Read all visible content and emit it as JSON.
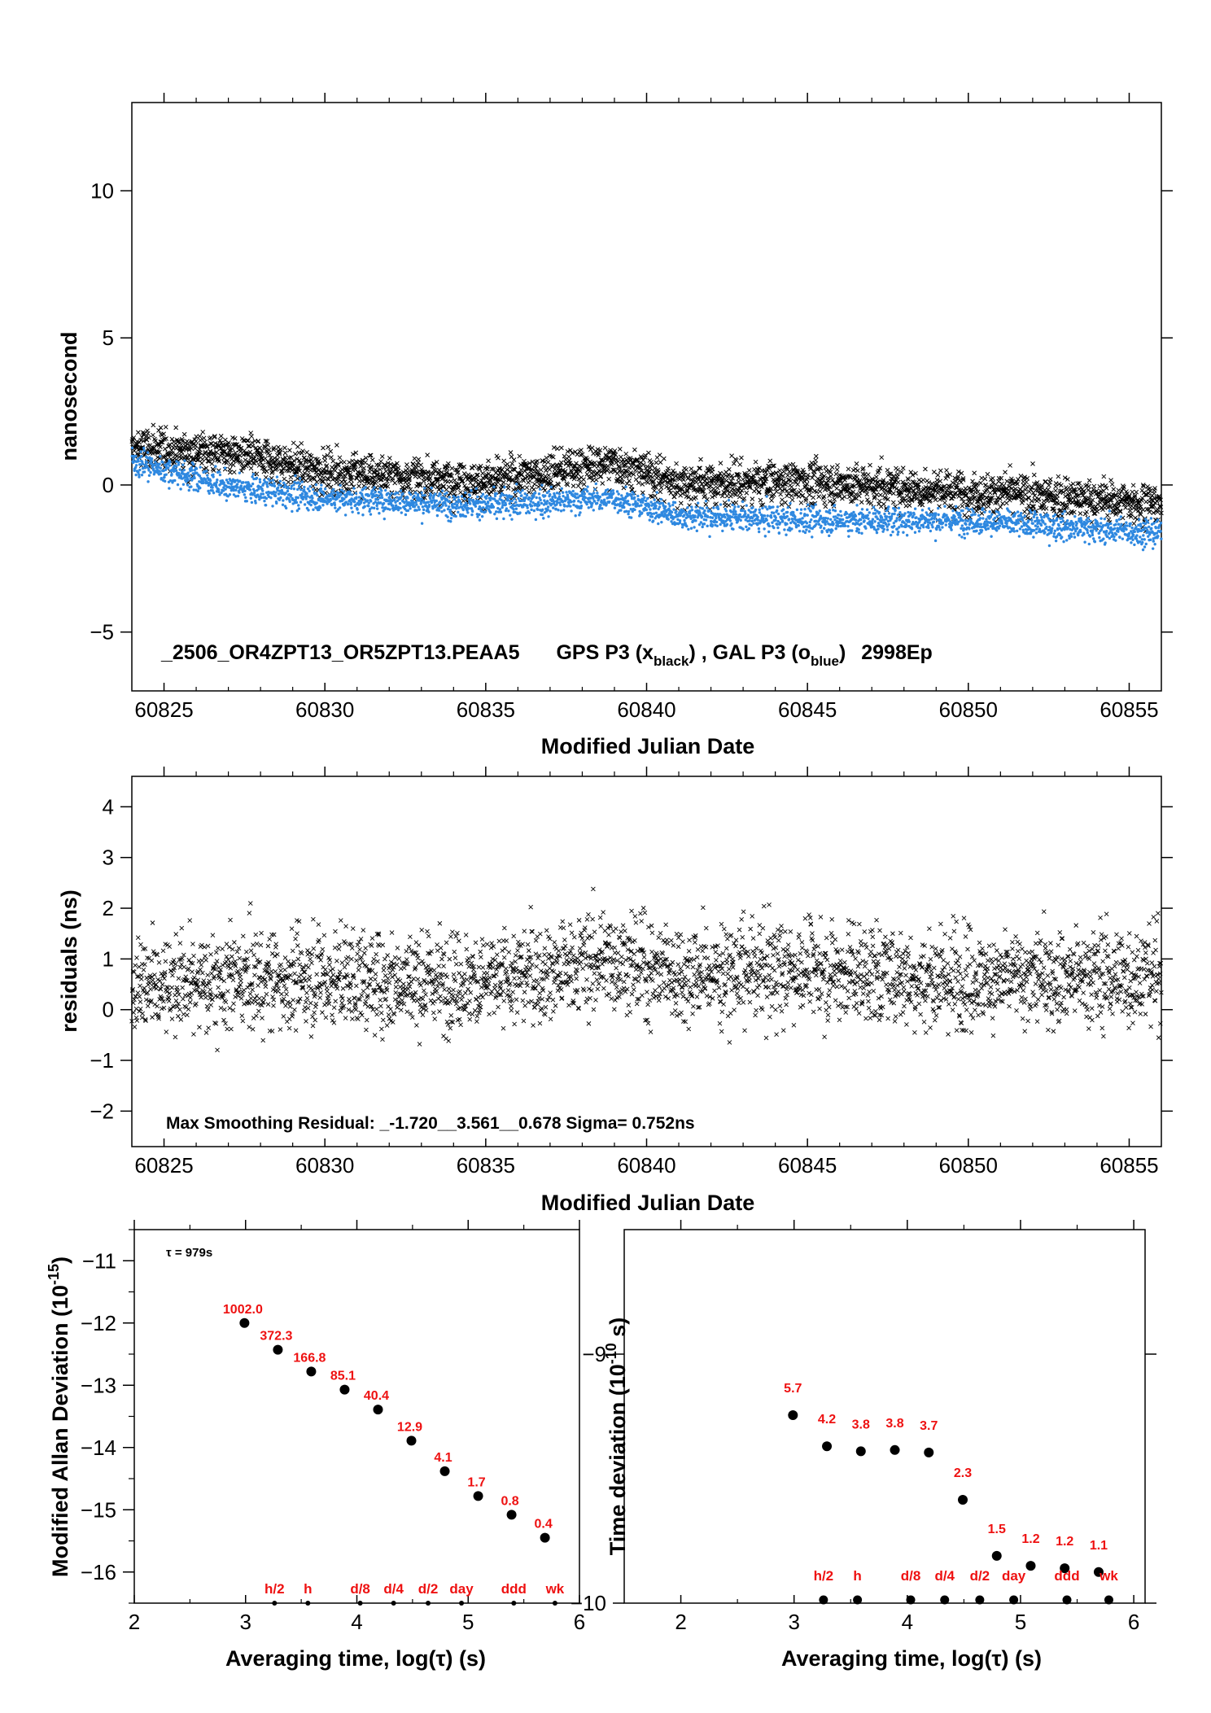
{
  "chart_data": [
    {
      "type": "scatter",
      "panel": "phase",
      "xlabel": "Modified Julian Date",
      "ylabel": "nanosecond",
      "xlim": [
        60824,
        60856
      ],
      "ylim": [
        -7,
        13
      ],
      "xticks": [
        60825,
        60830,
        60835,
        60840,
        60845,
        60850,
        60855
      ],
      "yticks": [
        -5,
        0,
        5,
        10
      ],
      "annotation": {
        "file": "_2506_OR4ZPT13_OR5ZPT13.PEAA5",
        "gps_prefix": "GPS P3 (x",
        "gps_sub": "black",
        "sep": ") ,  GAL P3 (o",
        "gal_sub": "blue",
        "gal_suffix": ")",
        "epochs": "2998Ep"
      },
      "series": [
        {
          "marker": "x",
          "color": "#000000",
          "trend": [
            [
              60824,
              1.25
            ],
            [
              60827,
              1.1
            ],
            [
              60830,
              0.45
            ],
            [
              60835,
              0.1
            ],
            [
              60839,
              0.75
            ],
            [
              60841,
              0.05
            ],
            [
              60845,
              0.1
            ],
            [
              60850,
              -0.25
            ],
            [
              60856,
              -0.65
            ]
          ],
          "spread": 0.55,
          "count": 2998
        },
        {
          "marker": "o",
          "color": "#2e88e0",
          "trend": [
            [
              60824,
              0.8
            ],
            [
              60827,
              -0.05
            ],
            [
              60830,
              -0.45
            ],
            [
              60835,
              -0.7
            ],
            [
              60839,
              -0.45
            ],
            [
              60841,
              -1.05
            ],
            [
              60845,
              -1.2
            ],
            [
              60850,
              -1.2
            ],
            [
              60856,
              -1.65
            ]
          ],
          "spread": 0.35,
          "count": 2998
        }
      ]
    },
    {
      "type": "scatter",
      "panel": "residuals",
      "xlabel": "Modified Julian Date",
      "ylabel": "residuals (ns)",
      "xlim": [
        60824,
        60856
      ],
      "ylim": [
        -2.7,
        4.6
      ],
      "xticks": [
        60825,
        60830,
        60835,
        60840,
        60845,
        60850,
        60855
      ],
      "yticks": [
        -2,
        -1,
        0,
        1,
        2,
        3,
        4
      ],
      "annotation": "Max Smoothing Residual: _-1.720__3.561__0.678  Sigma= 0.752ns",
      "series": [
        {
          "marker": "x",
          "color": "#000000",
          "trend": [
            [
              60824,
              0.5
            ],
            [
              60830,
              0.6
            ],
            [
              60835,
              0.55
            ],
            [
              60839,
              1.0
            ],
            [
              60841,
              0.7
            ],
            [
              60845,
              0.8
            ],
            [
              60850,
              0.6
            ],
            [
              60856,
              0.7
            ]
          ],
          "spread": 0.75,
          "count": 2998
        }
      ]
    },
    {
      "type": "scatter",
      "panel": "mdev",
      "xlabel": "Averaging time, log(τ) (s)",
      "ylabel": "Modified Allan Deviation (10⁻¹⁵)",
      "xlim": [
        2,
        6
      ],
      "ylim": [
        -16.5,
        -10.5
      ],
      "xticks": [
        2,
        3,
        4,
        5,
        6
      ],
      "yticks": [
        -16,
        -15,
        -14,
        -13,
        -12,
        -11
      ],
      "tau_note": "τ = 979s",
      "x": [
        2.99,
        3.29,
        3.59,
        3.89,
        4.19,
        4.49,
        4.79,
        5.09,
        5.39,
        5.69
      ],
      "y": [
        -12.0,
        -12.43,
        -12.78,
        -13.07,
        -13.39,
        -13.89,
        -14.38,
        -14.78,
        -15.08,
        -15.45
      ],
      "labels": [
        "1002.0",
        "372.3",
        "166.8",
        "85.1",
        "40.4",
        "12.9",
        "4.1",
        "1.7",
        "0.8",
        "0.4"
      ],
      "markers": [
        {
          "label": "h/2",
          "x": 3.26
        },
        {
          "label": "h",
          "x": 3.56
        },
        {
          "label": "d/8",
          "x": 4.03
        },
        {
          "label": "d/4",
          "x": 4.33
        },
        {
          "label": "d/2",
          "x": 4.64
        },
        {
          "label": "day",
          "x": 4.94
        },
        {
          "label": "ddd",
          "x": 5.41
        },
        {
          "label": "wk",
          "x": 5.78
        }
      ]
    },
    {
      "type": "scatter",
      "panel": "tdev",
      "xlabel": "Averaging time, log(τ) (s)",
      "ylabel": "Time deviation (10⁻¹⁰ s)",
      "xlim": [
        1.5,
        6.1
      ],
      "ylim": [
        -10,
        -8.5
      ],
      "xticks": [
        2,
        3,
        4,
        5,
        6
      ],
      "yticks": [
        -10,
        -9
      ],
      "x": [
        2.99,
        3.29,
        3.59,
        3.89,
        4.19,
        4.49,
        4.79,
        5.09,
        5.39,
        5.69
      ],
      "y": [
        -9.245,
        -9.37,
        -9.39,
        -9.385,
        -9.395,
        -9.585,
        -9.81,
        -9.85,
        -9.86,
        -9.875
      ],
      "labels": [
        "5.7",
        "4.2",
        "3.8",
        "3.8",
        "3.7",
        "2.3",
        "1.5",
        "1.2",
        "1.2",
        "1.1"
      ],
      "markers": [
        {
          "label": "h/2",
          "x": 3.26
        },
        {
          "label": "h",
          "x": 3.56
        },
        {
          "label": "d/8",
          "x": 4.03
        },
        {
          "label": "d/4",
          "x": 4.33
        },
        {
          "label": "d/2",
          "x": 4.64
        },
        {
          "label": "day",
          "x": 4.94
        },
        {
          "label": "ddd",
          "x": 5.41
        },
        {
          "label": "wk",
          "x": 5.78
        }
      ]
    }
  ]
}
